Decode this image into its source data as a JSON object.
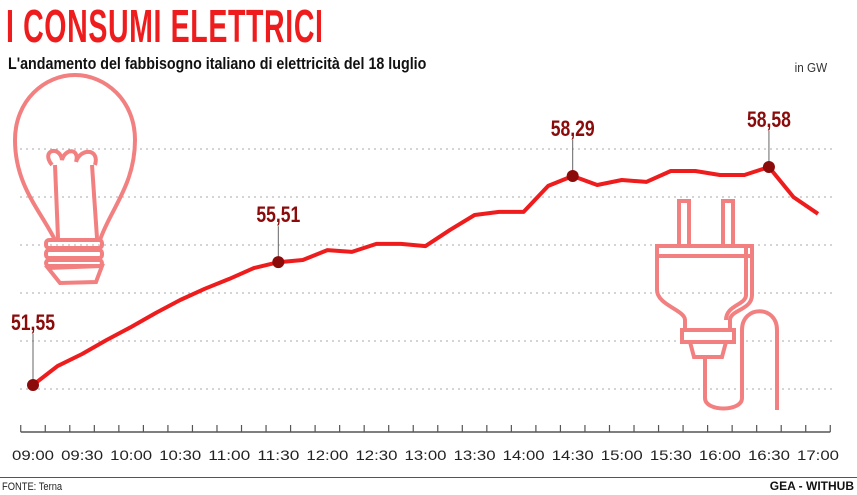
{
  "title": "I CONSUMI ELETTRICI",
  "subtitle": "L'andamento del fabbisogno italiano di elettricità del 18 luglio",
  "unit": "in GW",
  "source": "FONTE: Terna",
  "credit": "GEA - WITHUB",
  "colors": {
    "line": "#ee1c1c",
    "marker": "#8b0b0b",
    "icon": "#f28080",
    "grid": "#aaaaaa"
  },
  "icons": [
    "light-bulb-icon",
    "electric-plug-icon"
  ],
  "chart_data": {
    "type": "line",
    "title": "I CONSUMI ELETTRICI",
    "xlabel": "",
    "ylabel": "GW",
    "ylim": [
      51.42,
      59.16
    ],
    "grid": true,
    "x": [
      "09:00",
      "09:15",
      "09:30",
      "09:45",
      "10:00",
      "10:15",
      "10:30",
      "10:45",
      "11:00",
      "11:15",
      "11:30",
      "11:45",
      "12:00",
      "12:15",
      "12:30",
      "12:45",
      "13:00",
      "13:15",
      "13:30",
      "13:45",
      "14:00",
      "14:15",
      "14:30",
      "14:45",
      "15:00",
      "15:15",
      "15:30",
      "15:45",
      "16:00",
      "16:15",
      "16:30",
      "16:45",
      "17:00"
    ],
    "tick_labels": [
      "09:00",
      "09:30",
      "10:00",
      "10:30",
      "11:00",
      "11:30",
      "12:00",
      "12:30",
      "13:00",
      "13:30",
      "14:00",
      "14:30",
      "15:00",
      "15:30",
      "16:00",
      "16:30",
      "17:00"
    ],
    "series": [
      {
        "name": "Fabbisogno",
        "values": [
          51.55,
          52.16,
          52.55,
          53.0,
          53.42,
          53.87,
          54.29,
          54.65,
          54.97,
          55.32,
          55.51,
          55.58,
          55.9,
          55.84,
          56.1,
          56.1,
          56.03,
          56.55,
          57.03,
          57.13,
          57.13,
          57.97,
          58.29,
          58.0,
          58.16,
          58.1,
          58.45,
          58.45,
          58.32,
          58.32,
          58.58,
          57.61,
          57.07
        ]
      }
    ],
    "annotations": [
      {
        "x": "09:00",
        "value": 51.55,
        "label": "51,55"
      },
      {
        "x": "11:30",
        "value": 55.51,
        "label": "55,51"
      },
      {
        "x": "14:30",
        "value": 58.29,
        "label": "58,29"
      },
      {
        "x": "16:30",
        "value": 58.58,
        "label": "58,58"
      }
    ]
  }
}
